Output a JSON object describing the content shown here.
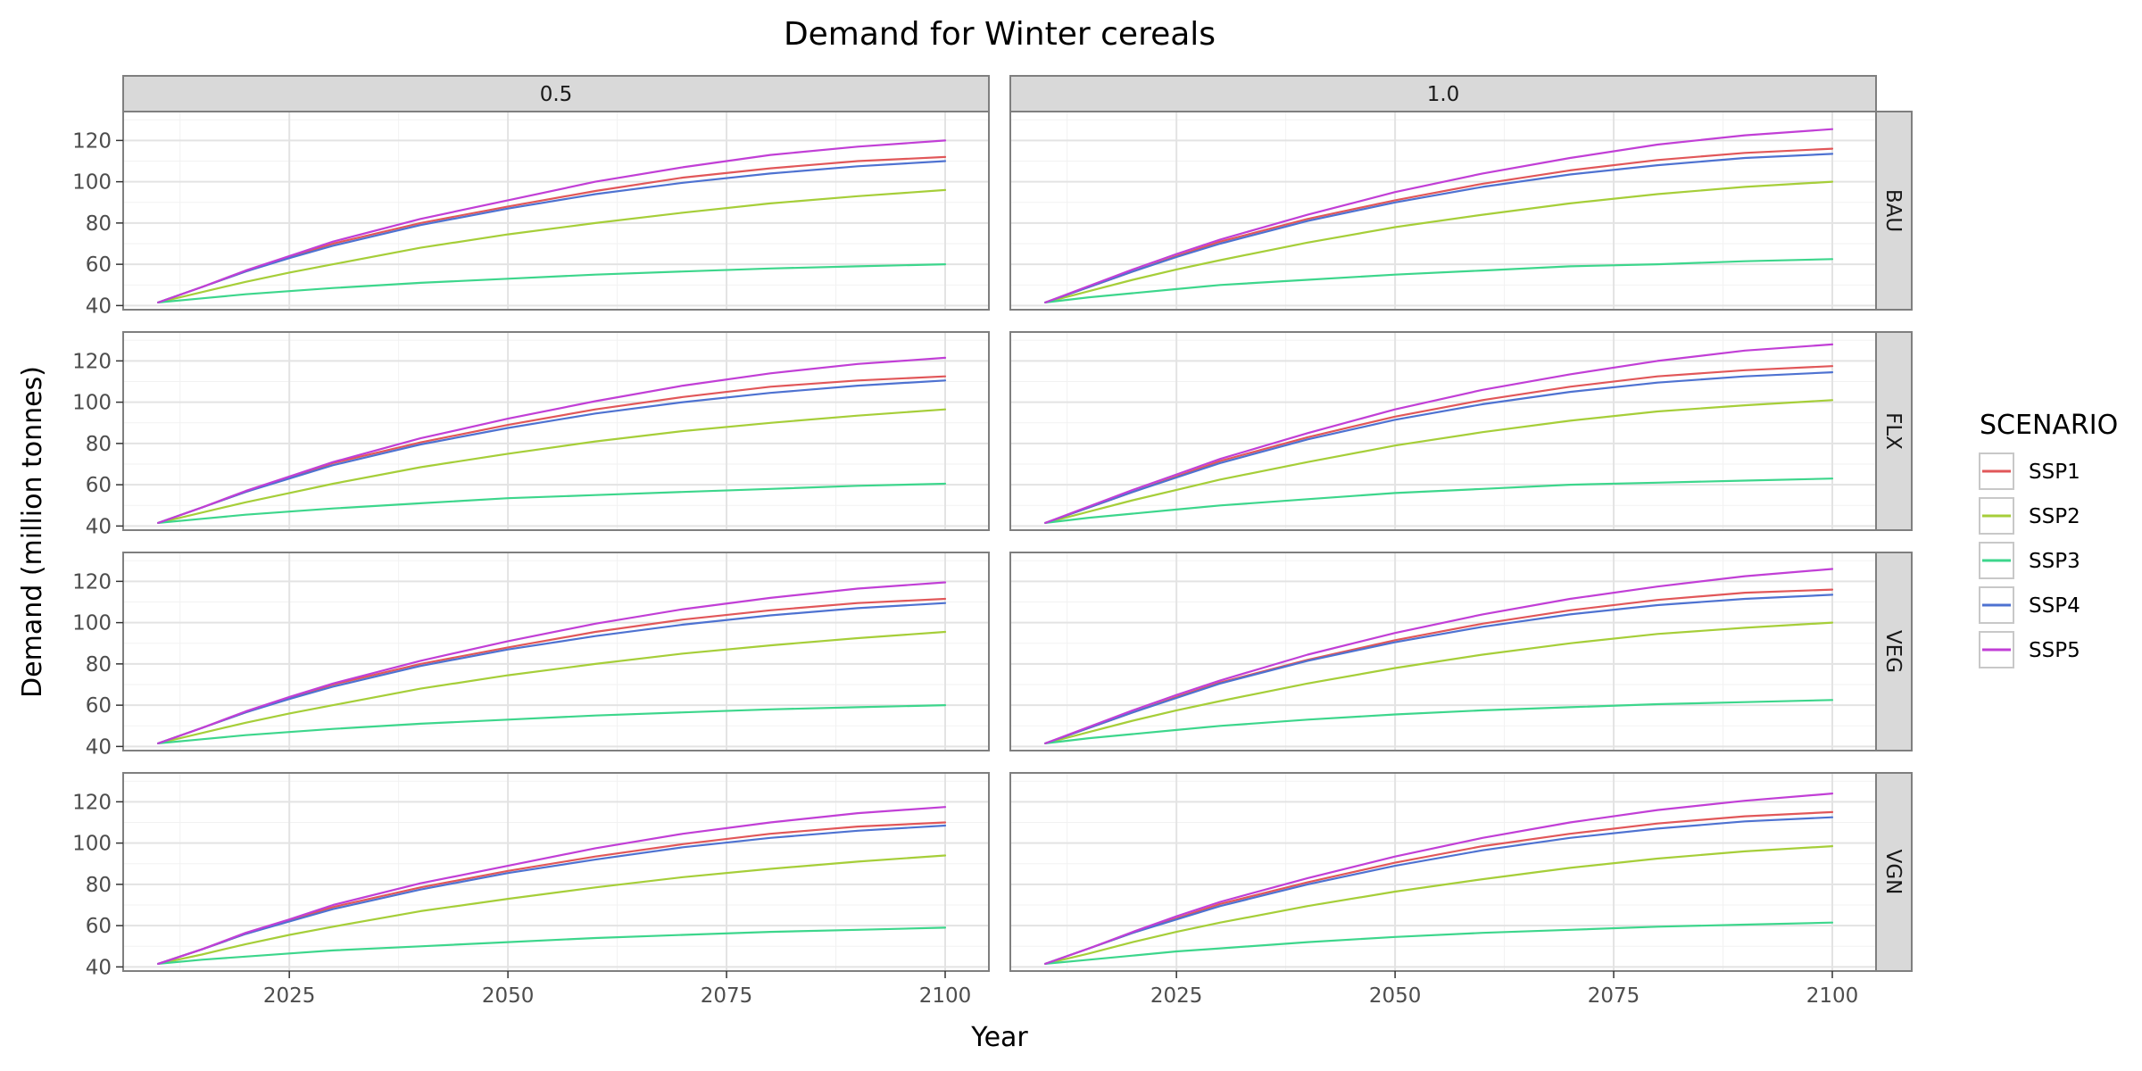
{
  "chart_data": {
    "type": "line",
    "title": "Demand for Winter cereals",
    "xlabel": "Year",
    "ylabel": "Demand (million tonnes)",
    "xlim": [
      2006,
      2105
    ],
    "ylim": [
      38,
      134
    ],
    "x_ticks": [
      2025,
      2050,
      2075,
      2100
    ],
    "y_ticks": [
      40,
      60,
      80,
      100,
      120
    ],
    "x_tick_labels": [
      "2025",
      "2050",
      "2075",
      "2100"
    ],
    "y_tick_labels": [
      "40",
      "60",
      "80",
      "100",
      "120"
    ],
    "grid": true,
    "legend_position": "right",
    "legend_title": "SCENARIO",
    "facet_cols": [
      "0.5",
      "1.0"
    ],
    "facet_rows": [
      "BAU",
      "FLX",
      "VEG",
      "VGN"
    ],
    "x": [
      2010,
      2015,
      2020,
      2025,
      2030,
      2040,
      2050,
      2060,
      2070,
      2080,
      2090,
      2100
    ],
    "panels": [
      {
        "row": "BAU",
        "col": "0.5",
        "series": [
          {
            "name": "SSP1",
            "color": "#E15759",
            "values": [
              41.5,
              49.0,
              56.5,
              63.5,
              70.0,
              80.0,
              88.0,
              95.5,
              102.0,
              106.5,
              110.0,
              112.0
            ]
          },
          {
            "name": "SSP2",
            "color": "#A6CE39",
            "values": [
              41.5,
              46.5,
              51.5,
              56.0,
              60.0,
              68.0,
              74.5,
              80.0,
              85.0,
              89.5,
              93.0,
              96.0
            ]
          },
          {
            "name": "SSP3",
            "color": "#3DD68C",
            "values": [
              41.5,
              43.5,
              45.5,
              47.0,
              48.5,
              51.0,
              53.0,
              55.0,
              56.5,
              58.0,
              59.0,
              60.0
            ]
          },
          {
            "name": "SSP4",
            "color": "#4E72D1",
            "values": [
              41.5,
              49.0,
              56.5,
              63.0,
              69.0,
              79.0,
              87.0,
              94.0,
              99.5,
              104.0,
              107.5,
              110.0
            ]
          },
          {
            "name": "SSP5",
            "color": "#C13FD6",
            "values": [
              41.5,
              49.0,
              57.0,
              64.0,
              71.0,
              82.0,
              91.0,
              100.0,
              107.0,
              113.0,
              117.0,
              120.0
            ]
          }
        ]
      },
      {
        "row": "BAU",
        "col": "1.0",
        "series": [
          {
            "name": "SSP1",
            "color": "#E15759",
            "values": [
              41.5,
              49.0,
              56.5,
              64.0,
              71.0,
              82.0,
              91.0,
              99.0,
              105.5,
              110.5,
              114.0,
              116.0
            ]
          },
          {
            "name": "SSP2",
            "color": "#A6CE39",
            "values": [
              41.5,
              47.0,
              52.5,
              57.5,
              62.0,
              70.5,
              78.0,
              84.0,
              89.5,
              94.0,
              97.5,
              100.0
            ]
          },
          {
            "name": "SSP3",
            "color": "#3DD68C",
            "values": [
              41.5,
              44.0,
              46.0,
              48.0,
              50.0,
              52.5,
              55.0,
              57.0,
              59.0,
              60.0,
              61.5,
              62.5
            ]
          },
          {
            "name": "SSP4",
            "color": "#4E72D1",
            "values": [
              41.5,
              49.0,
              56.5,
              63.5,
              70.0,
              81.0,
              90.0,
              97.5,
              103.5,
              108.0,
              111.5,
              113.5
            ]
          },
          {
            "name": "SSP5",
            "color": "#C13FD6",
            "values": [
              41.5,
              49.5,
              57.5,
              65.0,
              72.0,
              84.0,
              95.0,
              104.0,
              111.5,
              118.0,
              122.5,
              125.5
            ]
          }
        ]
      },
      {
        "row": "FLX",
        "col": "0.5",
        "series": [
          {
            "name": "SSP1",
            "color": "#E15759",
            "values": [
              41.5,
              49.0,
              56.5,
              63.5,
              70.5,
              80.5,
              89.0,
              96.5,
              102.5,
              107.5,
              110.5,
              112.5
            ]
          },
          {
            "name": "SSP2",
            "color": "#A6CE39",
            "values": [
              41.5,
              46.5,
              51.5,
              56.0,
              60.5,
              68.5,
              75.0,
              81.0,
              86.0,
              90.0,
              93.5,
              96.5
            ]
          },
          {
            "name": "SSP3",
            "color": "#3DD68C",
            "values": [
              41.5,
              43.5,
              45.5,
              47.0,
              48.5,
              51.0,
              53.5,
              55.0,
              56.5,
              58.0,
              59.5,
              60.5
            ]
          },
          {
            "name": "SSP4",
            "color": "#4E72D1",
            "values": [
              41.5,
              49.0,
              56.5,
              63.0,
              69.5,
              79.5,
              87.5,
              94.5,
              100.0,
              104.5,
              108.0,
              110.5
            ]
          },
          {
            "name": "SSP5",
            "color": "#C13FD6",
            "values": [
              41.5,
              49.0,
              57.0,
              64.0,
              71.0,
              82.5,
              92.0,
              100.5,
              108.0,
              114.0,
              118.5,
              121.5
            ]
          }
        ]
      },
      {
        "row": "FLX",
        "col": "1.0",
        "series": [
          {
            "name": "SSP1",
            "color": "#E15759",
            "values": [
              41.5,
              49.0,
              56.5,
              64.0,
              71.5,
              83.0,
              93.0,
              101.0,
              107.5,
              112.5,
              115.5,
              117.5
            ]
          },
          {
            "name": "SSP2",
            "color": "#A6CE39",
            "values": [
              41.5,
              47.0,
              52.5,
              57.5,
              62.5,
              71.0,
              79.0,
              85.5,
              91.0,
              95.5,
              98.5,
              101.0
            ]
          },
          {
            "name": "SSP3",
            "color": "#3DD68C",
            "values": [
              41.5,
              44.0,
              46.0,
              48.0,
              50.0,
              53.0,
              56.0,
              58.0,
              60.0,
              61.0,
              62.0,
              63.0
            ]
          },
          {
            "name": "SSP4",
            "color": "#4E72D1",
            "values": [
              41.5,
              49.0,
              56.5,
              63.5,
              70.5,
              82.0,
              91.5,
              99.0,
              105.0,
              109.5,
              112.5,
              114.5
            ]
          },
          {
            "name": "SSP5",
            "color": "#C13FD6",
            "values": [
              41.5,
              49.5,
              57.5,
              65.0,
              72.5,
              85.0,
              96.5,
              106.0,
              113.5,
              120.0,
              125.0,
              128.0
            ]
          }
        ]
      },
      {
        "row": "VEG",
        "col": "0.5",
        "series": [
          {
            "name": "SSP1",
            "color": "#E15759",
            "values": [
              41.5,
              49.0,
              56.5,
              63.5,
              70.0,
              80.0,
              88.0,
              95.5,
              101.5,
              106.0,
              109.5,
              111.5
            ]
          },
          {
            "name": "SSP2",
            "color": "#A6CE39",
            "values": [
              41.5,
              46.5,
              51.5,
              56.0,
              60.0,
              68.0,
              74.5,
              80.0,
              85.0,
              89.0,
              92.5,
              95.5
            ]
          },
          {
            "name": "SSP3",
            "color": "#3DD68C",
            "values": [
              41.5,
              43.5,
              45.5,
              47.0,
              48.5,
              51.0,
              53.0,
              55.0,
              56.5,
              58.0,
              59.0,
              60.0
            ]
          },
          {
            "name": "SSP4",
            "color": "#4E72D1",
            "values": [
              41.5,
              49.0,
              56.5,
              63.0,
              69.0,
              79.0,
              87.0,
              93.5,
              99.0,
              103.5,
              107.0,
              109.5
            ]
          },
          {
            "name": "SSP5",
            "color": "#C13FD6",
            "values": [
              41.5,
              49.0,
              57.0,
              64.0,
              70.5,
              81.5,
              91.0,
              99.5,
              106.5,
              112.0,
              116.5,
              119.5
            ]
          }
        ]
      },
      {
        "row": "VEG",
        "col": "1.0",
        "series": [
          {
            "name": "SSP1",
            "color": "#E15759",
            "values": [
              41.5,
              49.0,
              56.5,
              64.0,
              71.0,
              82.0,
              91.5,
              99.5,
              106.0,
              111.0,
              114.5,
              116.0
            ]
          },
          {
            "name": "SSP2",
            "color": "#A6CE39",
            "values": [
              41.5,
              47.0,
              52.5,
              57.5,
              62.0,
              70.5,
              78.0,
              84.5,
              90.0,
              94.5,
              97.5,
              100.0
            ]
          },
          {
            "name": "SSP3",
            "color": "#3DD68C",
            "values": [
              41.5,
              44.0,
              46.0,
              48.0,
              50.0,
              53.0,
              55.5,
              57.5,
              59.0,
              60.5,
              61.5,
              62.5
            ]
          },
          {
            "name": "SSP4",
            "color": "#4E72D1",
            "values": [
              41.5,
              49.0,
              56.5,
              63.5,
              70.5,
              81.5,
              90.5,
              98.0,
              104.0,
              108.5,
              111.5,
              113.5
            ]
          },
          {
            "name": "SSP5",
            "color": "#C13FD6",
            "values": [
              41.5,
              49.5,
              57.5,
              65.0,
              72.0,
              84.5,
              95.0,
              104.0,
              111.5,
              117.5,
              122.5,
              126.0
            ]
          }
        ]
      },
      {
        "row": "VGN",
        "col": "0.5",
        "series": [
          {
            "name": "SSP1",
            "color": "#E15759",
            "values": [
              41.5,
              48.5,
              56.0,
              62.5,
              69.0,
              78.5,
              86.5,
              93.5,
              99.5,
              104.5,
              108.0,
              110.0
            ]
          },
          {
            "name": "SSP2",
            "color": "#A6CE39",
            "values": [
              41.5,
              46.0,
              51.0,
              55.5,
              59.5,
              67.0,
              73.0,
              78.5,
              83.5,
              87.5,
              91.0,
              94.0
            ]
          },
          {
            "name": "SSP3",
            "color": "#3DD68C",
            "values": [
              41.5,
              43.5,
              45.0,
              46.5,
              48.0,
              50.0,
              52.0,
              54.0,
              55.5,
              57.0,
              58.0,
              59.0
            ]
          },
          {
            "name": "SSP4",
            "color": "#4E72D1",
            "values": [
              41.5,
              48.5,
              56.0,
              62.0,
              68.0,
              77.5,
              85.5,
              92.0,
              98.0,
              102.5,
              106.0,
              108.5
            ]
          },
          {
            "name": "SSP5",
            "color": "#C13FD6",
            "values": [
              41.5,
              48.5,
              56.5,
              63.0,
              70.0,
              80.5,
              89.0,
              97.5,
              104.5,
              110.0,
              114.5,
              117.5
            ]
          }
        ]
      },
      {
        "row": "VGN",
        "col": "1.0",
        "series": [
          {
            "name": "SSP1",
            "color": "#E15759",
            "values": [
              41.5,
              49.0,
              56.5,
              63.5,
              70.5,
              81.0,
              90.5,
              98.5,
              104.5,
              109.5,
              113.0,
              115.0
            ]
          },
          {
            "name": "SSP2",
            "color": "#A6CE39",
            "values": [
              41.5,
              46.5,
              52.0,
              57.0,
              61.5,
              69.5,
              76.5,
              82.5,
              88.0,
              92.5,
              96.0,
              98.5
            ]
          },
          {
            "name": "SSP3",
            "color": "#3DD68C",
            "values": [
              41.5,
              43.5,
              45.5,
              47.5,
              49.0,
              52.0,
              54.5,
              56.5,
              58.0,
              59.5,
              60.5,
              61.5
            ]
          },
          {
            "name": "SSP4",
            "color": "#4E72D1",
            "values": [
              41.5,
              49.0,
              56.5,
              63.0,
              69.5,
              80.0,
              89.0,
              96.5,
              102.5,
              107.0,
              110.5,
              112.5
            ]
          },
          {
            "name": "SSP5",
            "color": "#C13FD6",
            "values": [
              41.5,
              49.0,
              57.0,
              64.5,
              71.5,
              83.0,
              93.5,
              102.5,
              110.0,
              116.0,
              120.5,
              124.0
            ]
          }
        ]
      }
    ]
  }
}
